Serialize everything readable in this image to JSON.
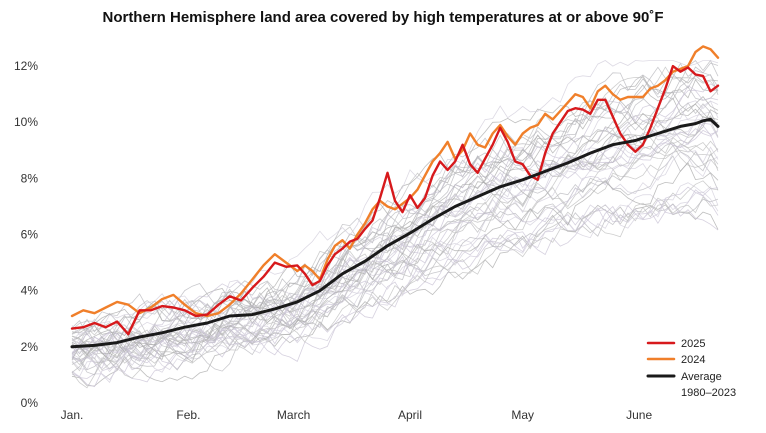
{
  "chart_data": {
    "type": "line",
    "title": "Northern Hemisphere land area covered by high temperatures at or above 90˚F",
    "xlabel": "",
    "ylabel": "",
    "ylim": [
      0,
      13
    ],
    "xlim": [
      0,
      172
    ],
    "y_ticks": [
      {
        "value": 0,
        "label": "0%"
      },
      {
        "value": 2,
        "label": "2%"
      },
      {
        "value": 4,
        "label": "4%"
      },
      {
        "value": 6,
        "label": "6%"
      },
      {
        "value": 8,
        "label": "8%"
      },
      {
        "value": 10,
        "label": "10%"
      },
      {
        "value": 12,
        "label": "12%"
      }
    ],
    "x_ticks": [
      {
        "value": 0,
        "label": "Jan."
      },
      {
        "value": 31,
        "label": "Feb."
      },
      {
        "value": 59,
        "label": "March"
      },
      {
        "value": 90,
        "label": "April"
      },
      {
        "value": 120,
        "label": "May"
      },
      {
        "value": 151,
        "label": "June"
      }
    ],
    "grid": false,
    "legend_position": "bottom-right",
    "legend": [
      {
        "label": "2025",
        "color": "#d7191c",
        "series": "2025"
      },
      {
        "label": "2024",
        "color": "#f07f2a",
        "series": "2024"
      },
      {
        "label": "Average",
        "color": "#1a1a1a",
        "series": "average"
      },
      {
        "label": "1980–2023",
        "color": "#c9c3d2",
        "series": "historical"
      }
    ],
    "series": [
      {
        "name": "2025",
        "color": "#d7191c",
        "points": [
          [
            0,
            2.65
          ],
          [
            3,
            2.7
          ],
          [
            6,
            2.85
          ],
          [
            9,
            2.7
          ],
          [
            12,
            2.9
          ],
          [
            15,
            2.45
          ],
          [
            18,
            3.3
          ],
          [
            21,
            3.3
          ],
          [
            24,
            3.45
          ],
          [
            27,
            3.4
          ],
          [
            30,
            3.3
          ],
          [
            33,
            3.1
          ],
          [
            36,
            3.15
          ],
          [
            39,
            3.5
          ],
          [
            42,
            3.8
          ],
          [
            45,
            3.65
          ],
          [
            48,
            4.1
          ],
          [
            51,
            4.5
          ],
          [
            54,
            5.0
          ],
          [
            57,
            4.85
          ],
          [
            60,
            4.9
          ],
          [
            62,
            4.6
          ],
          [
            64,
            4.2
          ],
          [
            66,
            4.35
          ],
          [
            68,
            4.9
          ],
          [
            70,
            5.3
          ],
          [
            72,
            5.5
          ],
          [
            74,
            5.75
          ],
          [
            76,
            5.85
          ],
          [
            78,
            6.2
          ],
          [
            80,
            6.5
          ],
          [
            82,
            7.3
          ],
          [
            84,
            8.2
          ],
          [
            86,
            7.2
          ],
          [
            88,
            6.8
          ],
          [
            90,
            7.4
          ],
          [
            92,
            6.95
          ],
          [
            94,
            7.3
          ],
          [
            96,
            8.1
          ],
          [
            98,
            8.6
          ],
          [
            100,
            8.3
          ],
          [
            102,
            8.6
          ],
          [
            104,
            9.2
          ],
          [
            106,
            8.5
          ],
          [
            108,
            8.2
          ],
          [
            110,
            8.7
          ],
          [
            112,
            9.2
          ],
          [
            114,
            9.8
          ],
          [
            116,
            9.3
          ],
          [
            118,
            8.6
          ],
          [
            120,
            8.5
          ],
          [
            122,
            8.1
          ],
          [
            124,
            7.95
          ],
          [
            126,
            8.9
          ],
          [
            128,
            9.6
          ],
          [
            130,
            10.0
          ],
          [
            132,
            10.4
          ],
          [
            134,
            10.5
          ],
          [
            136,
            10.45
          ],
          [
            138,
            10.3
          ],
          [
            140,
            10.8
          ],
          [
            142,
            10.8
          ],
          [
            144,
            10.2
          ],
          [
            146,
            9.6
          ],
          [
            148,
            9.2
          ],
          [
            150,
            8.95
          ],
          [
            152,
            9.2
          ],
          [
            154,
            9.8
          ],
          [
            156,
            10.5
          ],
          [
            158,
            11.2
          ],
          [
            160,
            12.0
          ],
          [
            162,
            11.8
          ],
          [
            164,
            11.95
          ],
          [
            166,
            11.7
          ],
          [
            168,
            11.65
          ],
          [
            170,
            11.1
          ],
          [
            172,
            11.3
          ]
        ]
      },
      {
        "name": "2024",
        "color": "#f07f2a",
        "points": [
          [
            0,
            3.1
          ],
          [
            3,
            3.3
          ],
          [
            6,
            3.2
          ],
          [
            9,
            3.4
          ],
          [
            12,
            3.6
          ],
          [
            15,
            3.5
          ],
          [
            18,
            3.2
          ],
          [
            21,
            3.4
          ],
          [
            24,
            3.7
          ],
          [
            27,
            3.85
          ],
          [
            30,
            3.5
          ],
          [
            33,
            3.2
          ],
          [
            36,
            3.1
          ],
          [
            39,
            3.2
          ],
          [
            42,
            3.5
          ],
          [
            45,
            3.9
          ],
          [
            48,
            4.4
          ],
          [
            51,
            4.9
          ],
          [
            54,
            5.3
          ],
          [
            57,
            5.0
          ],
          [
            60,
            4.7
          ],
          [
            62,
            4.9
          ],
          [
            64,
            4.7
          ],
          [
            66,
            4.4
          ],
          [
            68,
            5.1
          ],
          [
            70,
            5.6
          ],
          [
            72,
            5.8
          ],
          [
            74,
            5.5
          ],
          [
            76,
            6.0
          ],
          [
            78,
            6.4
          ],
          [
            80,
            6.9
          ],
          [
            82,
            7.2
          ],
          [
            84,
            7.0
          ],
          [
            86,
            6.9
          ],
          [
            88,
            7.1
          ],
          [
            90,
            7.3
          ],
          [
            92,
            7.6
          ],
          [
            94,
            8.1
          ],
          [
            96,
            8.6
          ],
          [
            98,
            8.9
          ],
          [
            100,
            9.3
          ],
          [
            102,
            8.7
          ],
          [
            104,
            9.0
          ],
          [
            106,
            9.6
          ],
          [
            108,
            9.2
          ],
          [
            110,
            9.1
          ],
          [
            112,
            9.6
          ],
          [
            114,
            9.9
          ],
          [
            116,
            9.5
          ],
          [
            118,
            9.2
          ],
          [
            120,
            9.6
          ],
          [
            122,
            9.8
          ],
          [
            124,
            9.9
          ],
          [
            126,
            10.3
          ],
          [
            128,
            10.1
          ],
          [
            130,
            10.4
          ],
          [
            132,
            10.7
          ],
          [
            134,
            11.0
          ],
          [
            136,
            10.9
          ],
          [
            138,
            10.5
          ],
          [
            140,
            11.1
          ],
          [
            142,
            11.3
          ],
          [
            144,
            11.0
          ],
          [
            146,
            10.8
          ],
          [
            148,
            10.9
          ],
          [
            150,
            10.9
          ],
          [
            152,
            10.9
          ],
          [
            154,
            11.2
          ],
          [
            156,
            11.3
          ],
          [
            158,
            11.5
          ],
          [
            160,
            11.8
          ],
          [
            162,
            11.9
          ],
          [
            164,
            12.0
          ],
          [
            166,
            12.5
          ],
          [
            168,
            12.7
          ],
          [
            170,
            12.6
          ],
          [
            172,
            12.3
          ]
        ]
      },
      {
        "name": "average",
        "color": "#1a1a1a",
        "points": [
          [
            0,
            2.0
          ],
          [
            6,
            2.05
          ],
          [
            12,
            2.15
          ],
          [
            18,
            2.35
          ],
          [
            24,
            2.5
          ],
          [
            30,
            2.7
          ],
          [
            36,
            2.85
          ],
          [
            42,
            3.1
          ],
          [
            48,
            3.15
          ],
          [
            54,
            3.35
          ],
          [
            60,
            3.6
          ],
          [
            66,
            4.0
          ],
          [
            72,
            4.6
          ],
          [
            78,
            5.05
          ],
          [
            84,
            5.6
          ],
          [
            90,
            6.05
          ],
          [
            96,
            6.55
          ],
          [
            102,
            7.0
          ],
          [
            108,
            7.35
          ],
          [
            114,
            7.7
          ],
          [
            120,
            7.95
          ],
          [
            126,
            8.25
          ],
          [
            132,
            8.55
          ],
          [
            138,
            8.9
          ],
          [
            144,
            9.2
          ],
          [
            150,
            9.35
          ],
          [
            156,
            9.6
          ],
          [
            162,
            9.85
          ],
          [
            166,
            9.95
          ],
          [
            168,
            10.05
          ],
          [
            170,
            10.1
          ],
          [
            172,
            9.85
          ]
        ]
      }
    ],
    "historical_years": "1980–2023",
    "historical_note": "Forty-four thin gray/lavender traces of individual years 1980–2023 clustered around the average."
  }
}
